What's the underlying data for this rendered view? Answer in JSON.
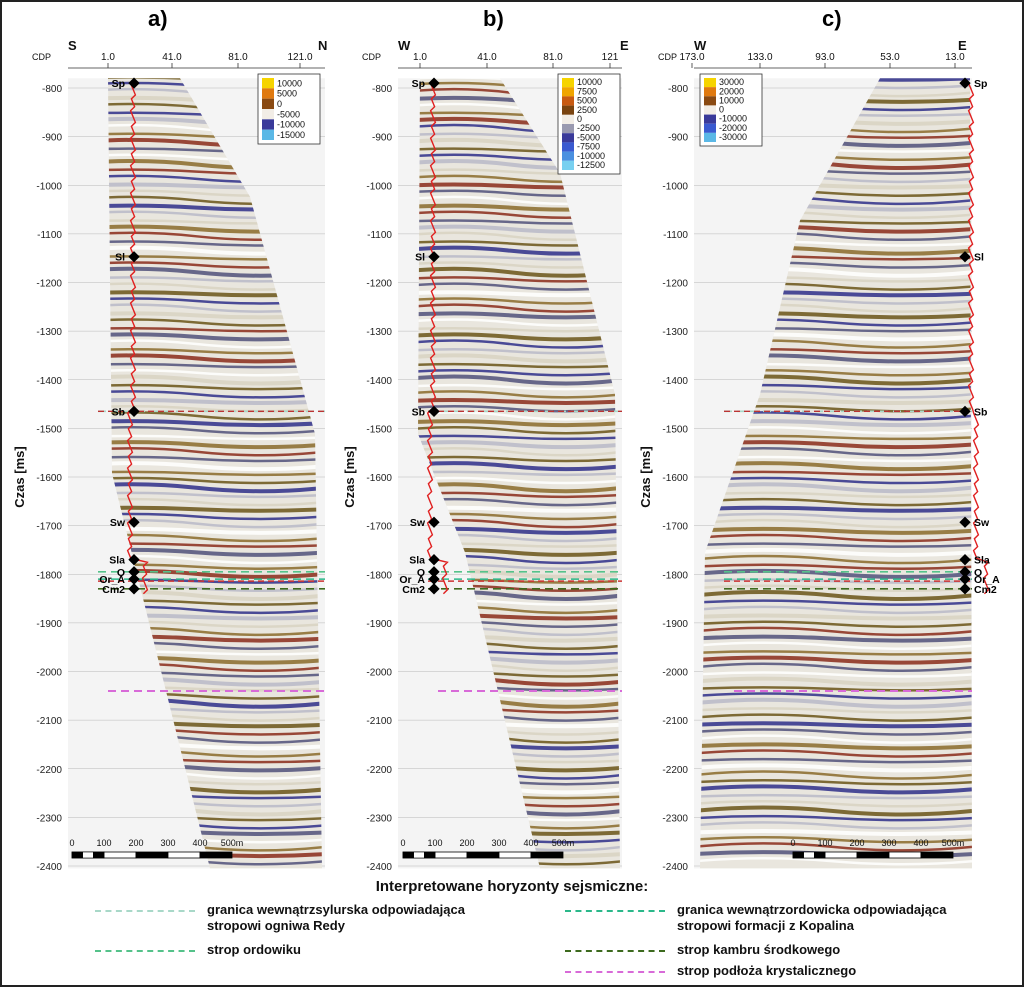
{
  "panels": [
    {
      "label": "a)",
      "cdp_label": "CDP",
      "left_dir": "S",
      "right_dir": "N",
      "cdp_ticks": [
        "1.0",
        "41.0",
        "81.0",
        "121.0"
      ],
      "colorbar": [
        "10000",
        "5000",
        "0",
        "-5000",
        "-10000",
        "-15000"
      ],
      "colorbar_colors": [
        "#f6d400",
        "#e07a10",
        "#8a4a12",
        "#f2ede6",
        "#3a3a9a",
        "#5bb8e6"
      ],
      "well_side": "left",
      "scale_bar": [
        "0",
        "100",
        "200",
        "300",
        "400",
        "500m"
      ],
      "ylabel": "Czas [ms]"
    },
    {
      "label": "b)",
      "cdp_label": "CDP",
      "left_dir": "W",
      "right_dir": "E",
      "cdp_ticks": [
        "1.0",
        "41.0",
        "81.0",
        "121"
      ],
      "colorbar": [
        "10000",
        "7500",
        "5000",
        "2500",
        "0",
        "-2500",
        "-5000",
        "-7500",
        "-10000",
        "-12500"
      ],
      "colorbar_colors": [
        "#f6d400",
        "#f0a500",
        "#c85a12",
        "#7a4410",
        "#f2ede6",
        "#9a9ab0",
        "#3a3a9a",
        "#3a5ad0",
        "#4a90e0",
        "#78d0f0"
      ],
      "well_side": "left",
      "scale_bar": [
        "0",
        "100",
        "200",
        "300",
        "400",
        "500m"
      ],
      "ylabel": "Czas [ms]"
    },
    {
      "label": "c)",
      "cdp_label": "CDP",
      "left_dir": "W",
      "right_dir": "E",
      "cdp_ticks": [
        "173.0",
        "133.0",
        "93.0",
        "53.0",
        "13.0"
      ],
      "colorbar": [
        "30000",
        "20000",
        "10000",
        "0",
        "-10000",
        "-20000",
        "-30000"
      ],
      "colorbar_colors": [
        "#f6d400",
        "#e07a10",
        "#8a4a12",
        "#f2ede6",
        "#3a3a9a",
        "#3a5ad0",
        "#5bb8e6"
      ],
      "well_side": "right",
      "scale_bar": [
        "0",
        "100",
        "200",
        "300",
        "400",
        "500m"
      ],
      "ylabel": "Czas [ms]"
    }
  ],
  "time_ticks": [
    "-800",
    "-900",
    "-1000",
    "-1100",
    "-1200",
    "-1300",
    "-1400",
    "-1500",
    "-1600",
    "-1700",
    "-1800",
    "-1900",
    "-2000",
    "-2100",
    "-2200",
    "-2300",
    "-2400"
  ],
  "markers": [
    {
      "label": "Sp",
      "time": -790
    },
    {
      "label": "Sl",
      "time": -1147
    },
    {
      "label": "Sb",
      "time": -1465
    },
    {
      "label": "Sw",
      "time": -1693
    },
    {
      "label": "Sla",
      "time": -1770
    },
    {
      "label": "O",
      "time": -1795
    },
    {
      "label": "Or_A",
      "time": -1810
    },
    {
      "label": "Cm2",
      "time": -1830
    }
  ],
  "legend": {
    "title": "Interpretowane horyzonty sejsmiczne:",
    "items": [
      {
        "text": "granica wewnątrzsylurska odpowiadająca\nstropowi ogniwa Redy",
        "color": "#a8d8c8"
      },
      {
        "text": "granica wewnątrzordowicka odpowiadająca\nstropowi formacji z Kopalina",
        "color": "#2bb88a"
      },
      {
        "text": "strop ordowiku",
        "color": "#55c28a"
      },
      {
        "text": "strop kambru środkowego",
        "color": "#3d6a1e"
      },
      {
        "text": "strop podłoża krystalicznego",
        "color": "#d86ad8"
      }
    ]
  }
}
